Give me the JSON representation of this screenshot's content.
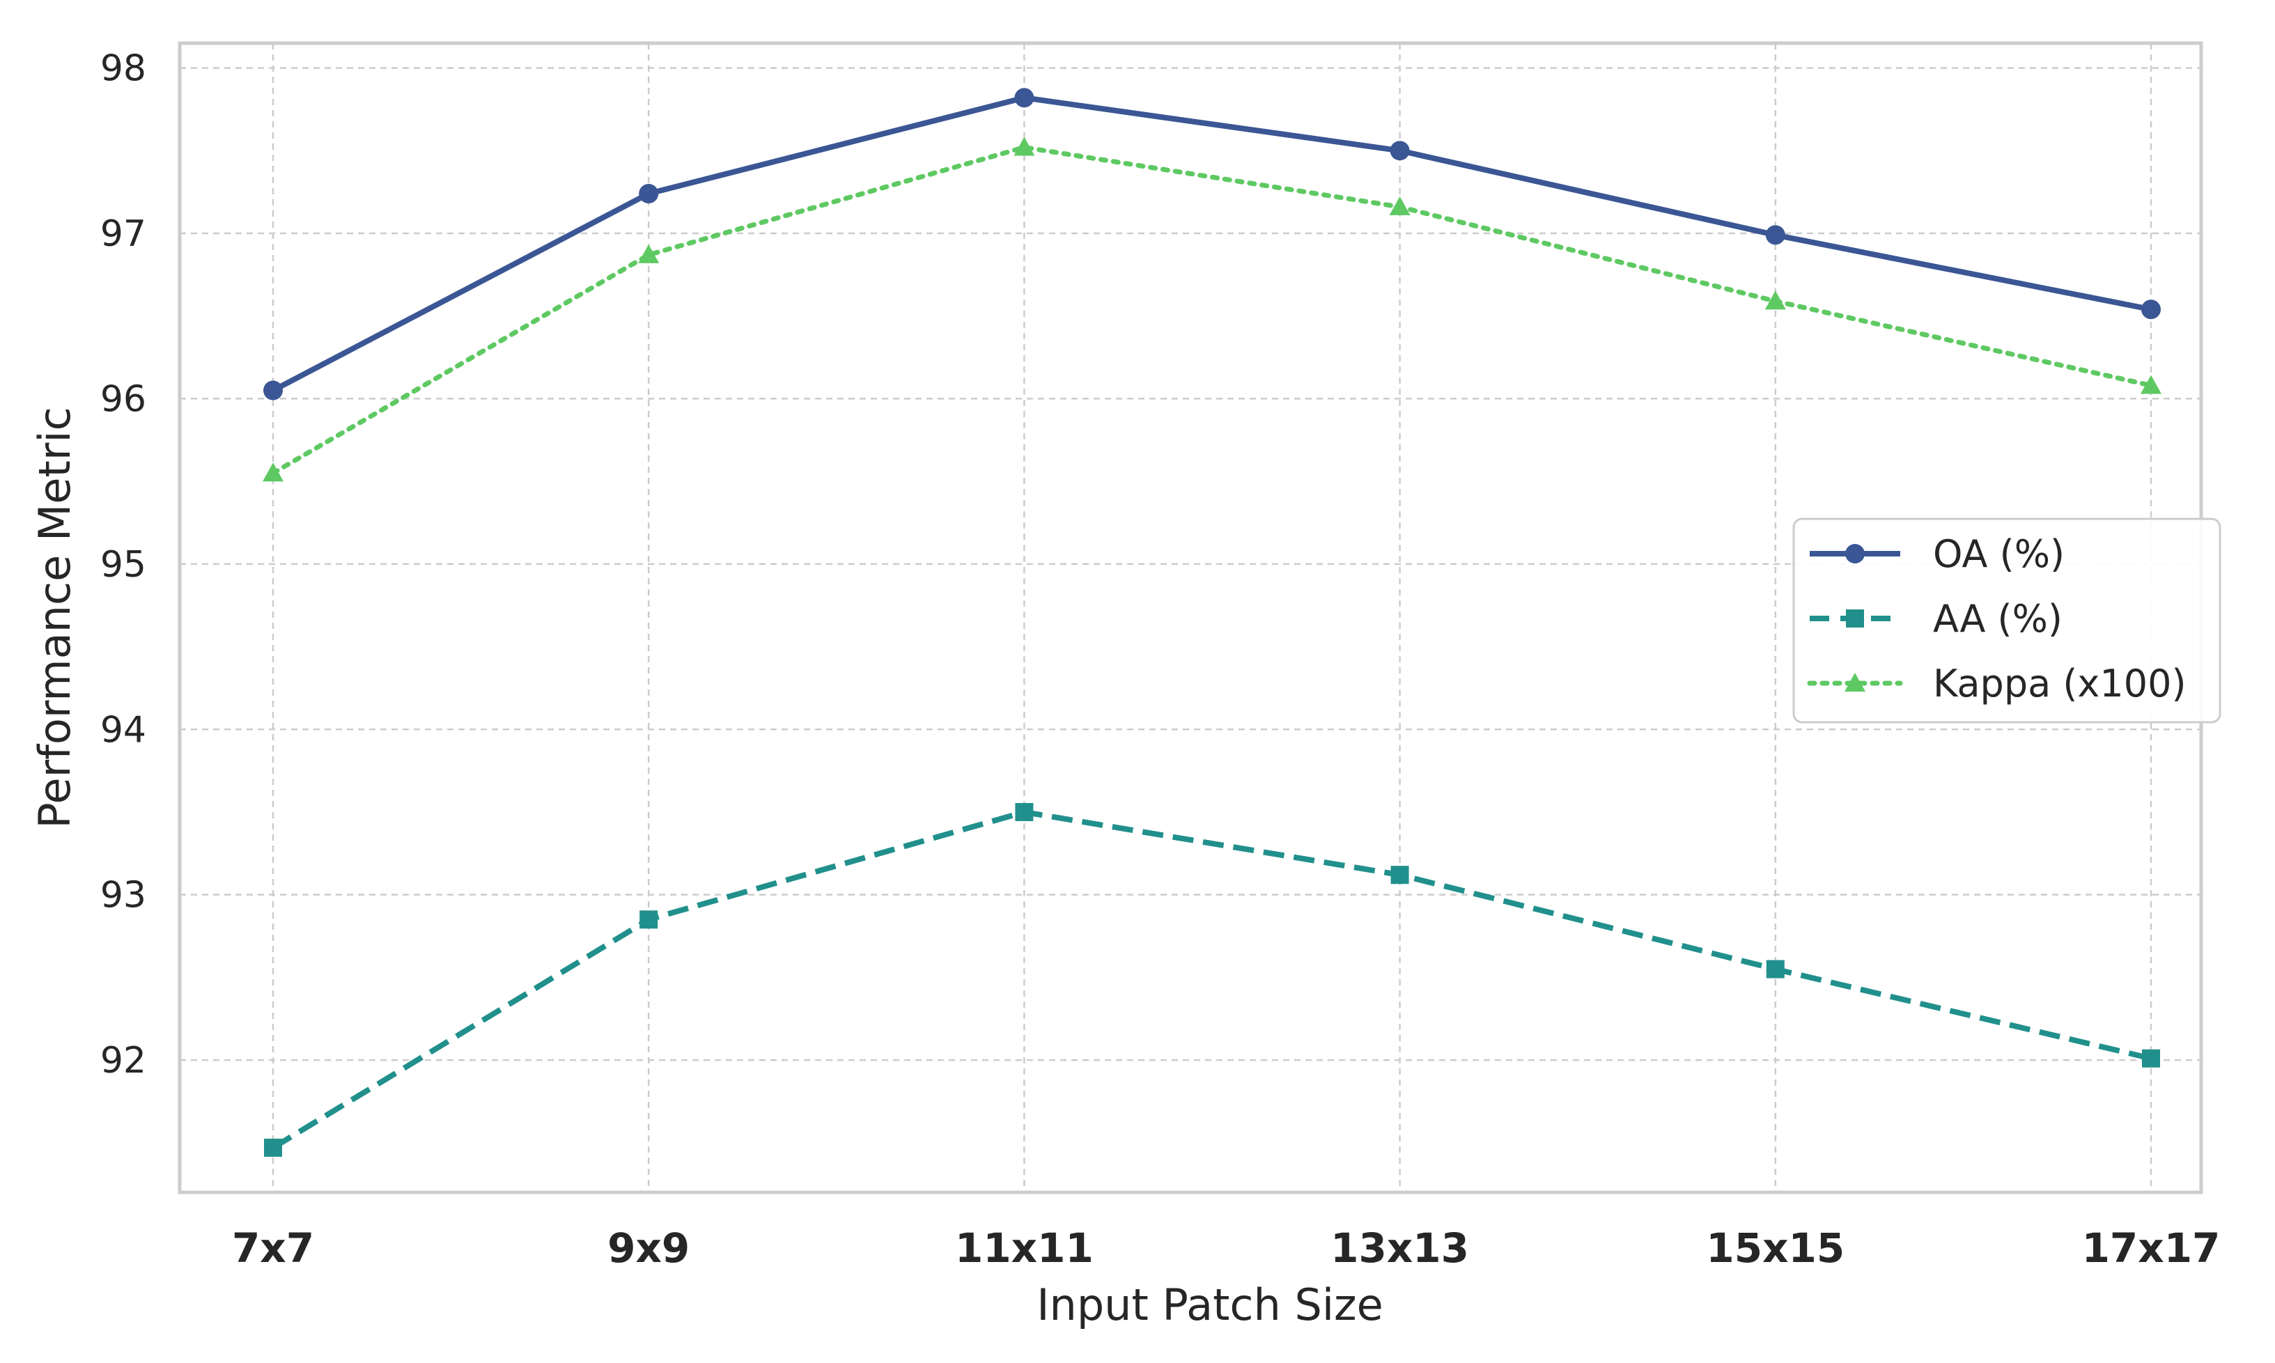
{
  "chart_data": {
    "type": "line",
    "title": "",
    "xlabel": "Input Patch Size",
    "ylabel": "Performance Metric",
    "categories": [
      "7x7",
      "9x9",
      "11x11",
      "13x13",
      "15x15",
      "17x17"
    ],
    "yticks": [
      "92",
      "93",
      "94",
      "95",
      "96",
      "97",
      "98"
    ],
    "ylim": [
      91.2,
      98.15
    ],
    "grid": true,
    "legend_position": "center-right",
    "series": [
      {
        "name": "OA (%)",
        "values": [
          96.05,
          97.24,
          97.82,
          97.5,
          96.99,
          96.54
        ],
        "color": "#3b5694",
        "line_style": "solid",
        "marker": "circle"
      },
      {
        "name": "AA (%)",
        "values": [
          91.47,
          92.85,
          93.5,
          93.12,
          92.55,
          92.01
        ],
        "color": "#21908c",
        "line_style": "dashed",
        "marker": "square"
      },
      {
        "name": "Kappa (x100)",
        "values": [
          95.55,
          96.87,
          97.52,
          97.16,
          96.59,
          96.08
        ],
        "color": "#5ec962",
        "line_style": "dotted",
        "marker": "triangle"
      }
    ]
  }
}
